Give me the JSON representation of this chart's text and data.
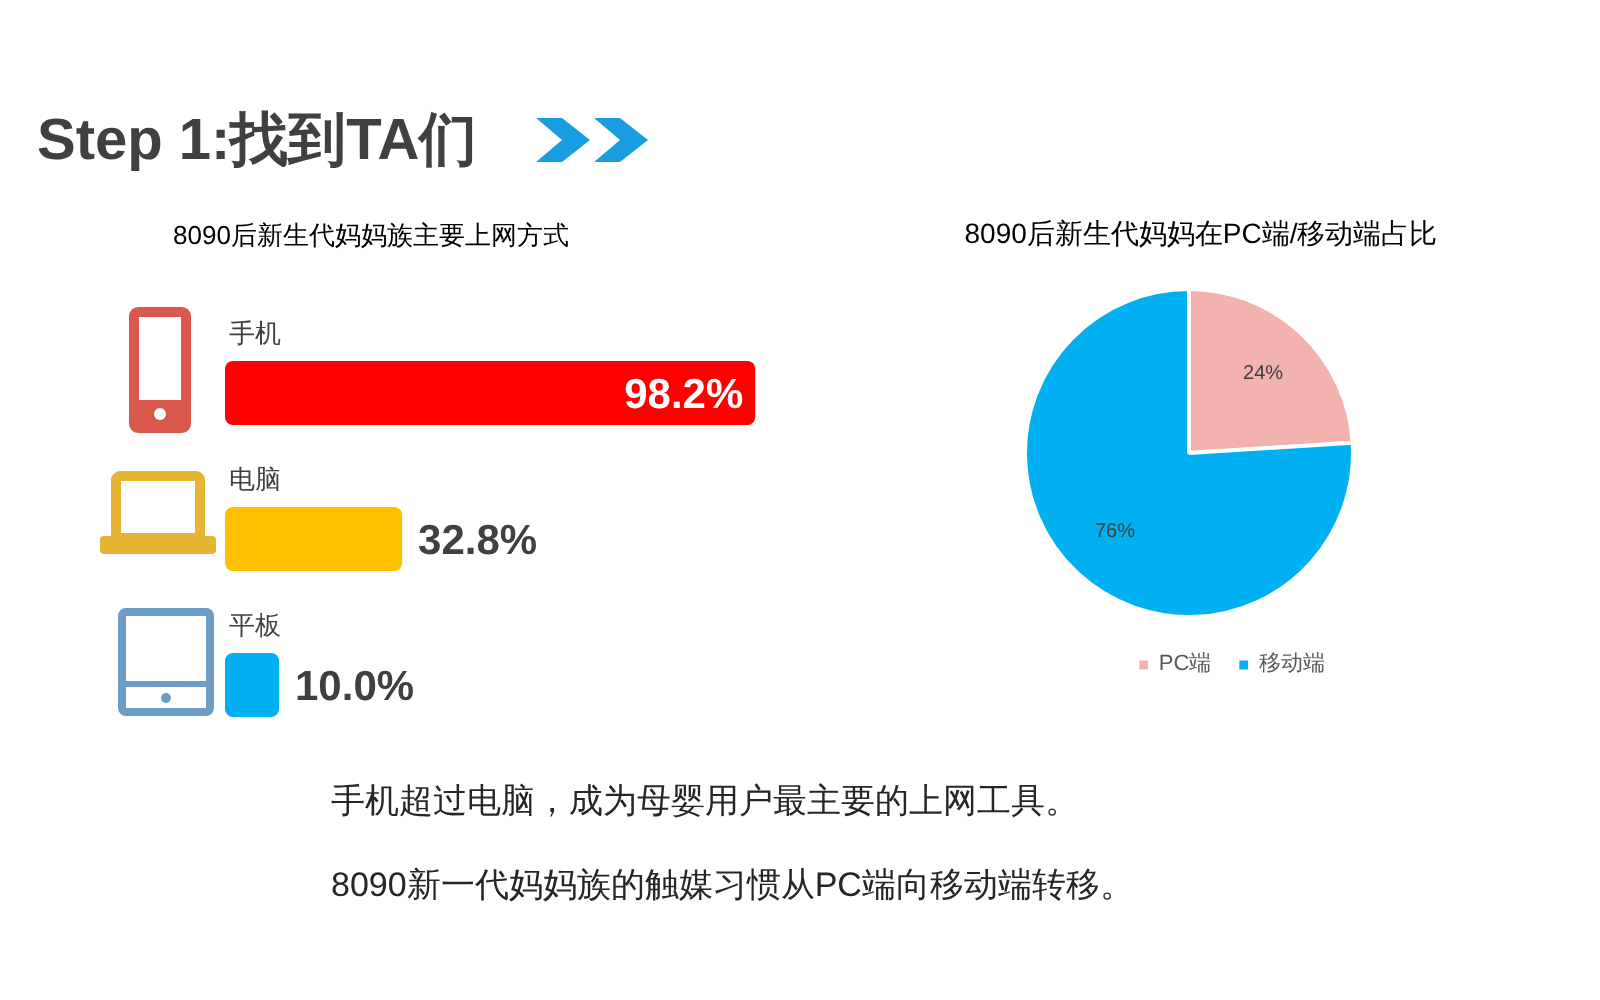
{
  "chart_data": [
    {
      "type": "bar",
      "title": "Step 1:找到TA们",
      "subtitle": "8090后新生代妈妈族主要上网方式",
      "orientation": "horizontal",
      "categories": [
        "手机",
        "电脑",
        "平板"
      ],
      "values": [
        98.2,
        32.8,
        10.0
      ],
      "colors": [
        "#ff0000",
        "#ffc000",
        "#00b0f0"
      ],
      "value_labels": [
        "98.2%",
        "32.8%",
        "10.0%"
      ]
    },
    {
      "type": "pie",
      "title": "8090后新生代妈妈在PC端/移动端占比",
      "categories": [
        "PC端",
        "移动端"
      ],
      "values": [
        24,
        76
      ],
      "colors": [
        "#f2b2ae",
        "#00b0f0"
      ],
      "value_labels": [
        "24%",
        "76%"
      ],
      "legend": "bottom"
    },
    {
      "type": "other",
      "annotations": [
        "手机超过电脑，成为母婴用户最主要的上网工具。",
        "8090新一代妈妈族的触媒习惯从PC端向移动端转移。"
      ]
    }
  ]
}
